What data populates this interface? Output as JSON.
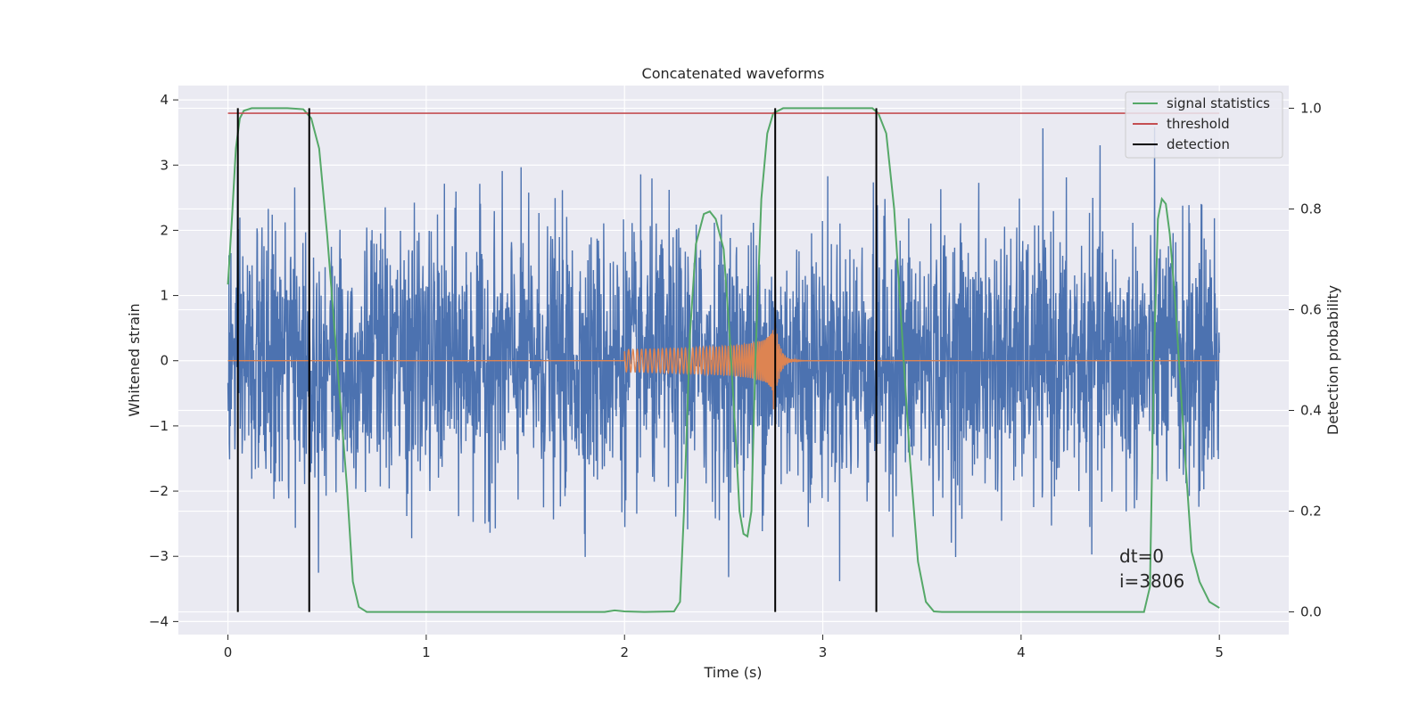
{
  "chart_data": {
    "type": "line",
    "title": "Concatenated waveforms",
    "xlabel": "Time (s)",
    "ylabel": "Whitened strain",
    "ylabel_right": "Detection probability",
    "xlim": [
      -0.25,
      5.35
    ],
    "ylim": [
      -4.2,
      4.22
    ],
    "ylim_right": [
      -0.045,
      1.045
    ],
    "x_ticks": [
      0,
      1,
      2,
      3,
      4,
      5
    ],
    "x_tick_labels": [
      "0",
      "1",
      "2",
      "3",
      "4",
      "5"
    ],
    "y_ticks": [
      -4,
      -3,
      -2,
      -1,
      0,
      1,
      2,
      3,
      4
    ],
    "y_tick_labels": [
      "−4",
      "−3",
      "−2",
      "−1",
      "0",
      "1",
      "2",
      "3",
      "4"
    ],
    "y_right_ticks": [
      0.0,
      0.2,
      0.4,
      0.6,
      0.8,
      1.0
    ],
    "y_right_tick_labels": [
      "0.0",
      "0.2",
      "0.4",
      "0.6",
      "0.8",
      "1.0"
    ],
    "grid": true,
    "legend_position": "top-right",
    "legend": [
      {
        "label": "signal statistics",
        "color": "#55a868"
      },
      {
        "label": "threshold",
        "color": "#c44e52"
      },
      {
        "label": "detection",
        "color": "#000000"
      }
    ],
    "strain_noise": {
      "color": "#4c72b0",
      "x_range": [
        0,
        5
      ],
      "typical_amplitude": 1.0,
      "max_amplitude": 3.85
    },
    "template_chirp": {
      "color": "#dd8452",
      "start": 2.0,
      "merger": 2.75,
      "end_ringdown": 3.0,
      "amplitude_start": 0.17,
      "amplitude_peak": 0.92
    },
    "signal_statistics": {
      "axis": "right",
      "color": "#55a868",
      "points": [
        [
          0.0,
          0.65
        ],
        [
          0.02,
          0.78
        ],
        [
          0.04,
          0.92
        ],
        [
          0.06,
          0.98
        ],
        [
          0.08,
          0.995
        ],
        [
          0.12,
          1.0
        ],
        [
          0.3,
          1.0
        ],
        [
          0.38,
          0.998
        ],
        [
          0.42,
          0.98
        ],
        [
          0.46,
          0.92
        ],
        [
          0.5,
          0.75
        ],
        [
          0.55,
          0.5
        ],
        [
          0.6,
          0.25
        ],
        [
          0.63,
          0.06
        ],
        [
          0.66,
          0.01
        ],
        [
          0.7,
          0.0
        ],
        [
          1.9,
          0.0
        ],
        [
          1.95,
          0.003
        ],
        [
          2.0,
          0.001
        ],
        [
          2.1,
          0.0
        ],
        [
          2.25,
          0.001
        ],
        [
          2.28,
          0.02
        ],
        [
          2.3,
          0.2
        ],
        [
          2.33,
          0.55
        ],
        [
          2.36,
          0.73
        ],
        [
          2.4,
          0.79
        ],
        [
          2.43,
          0.795
        ],
        [
          2.46,
          0.78
        ],
        [
          2.5,
          0.72
        ],
        [
          2.53,
          0.55
        ],
        [
          2.56,
          0.35
        ],
        [
          2.58,
          0.2
        ],
        [
          2.6,
          0.155
        ],
        [
          2.62,
          0.15
        ],
        [
          2.64,
          0.2
        ],
        [
          2.66,
          0.5
        ],
        [
          2.69,
          0.82
        ],
        [
          2.72,
          0.95
        ],
        [
          2.75,
          0.99
        ],
        [
          2.8,
          1.0
        ],
        [
          3.25,
          1.0
        ],
        [
          3.28,
          0.99
        ],
        [
          3.32,
          0.95
        ],
        [
          3.36,
          0.8
        ],
        [
          3.4,
          0.55
        ],
        [
          3.44,
          0.3
        ],
        [
          3.48,
          0.1
        ],
        [
          3.52,
          0.02
        ],
        [
          3.56,
          0.001
        ],
        [
          3.6,
          0.0
        ],
        [
          4.62,
          0.0
        ],
        [
          4.65,
          0.05
        ],
        [
          4.67,
          0.5
        ],
        [
          4.69,
          0.78
        ],
        [
          4.71,
          0.82
        ],
        [
          4.73,
          0.81
        ],
        [
          4.75,
          0.75
        ],
        [
          4.78,
          0.6
        ],
        [
          4.82,
          0.35
        ],
        [
          4.86,
          0.12
        ],
        [
          4.9,
          0.06
        ],
        [
          4.95,
          0.02
        ],
        [
          5.0,
          0.008
        ]
      ]
    },
    "threshold": {
      "axis": "right",
      "value": 0.99,
      "x_range": [
        0,
        5
      ],
      "color": "#c44e52"
    },
    "detections": {
      "axis": "right",
      "times": [
        0.05,
        0.41,
        2.76,
        3.27
      ],
      "y_range": [
        0,
        1.0
      ],
      "color": "#000000"
    }
  },
  "annotation": {
    "line1": "dt=0",
    "line2": "i=3806"
  },
  "colors": {
    "plot_background": "#eaeaf2",
    "grid": "#ffffff"
  }
}
